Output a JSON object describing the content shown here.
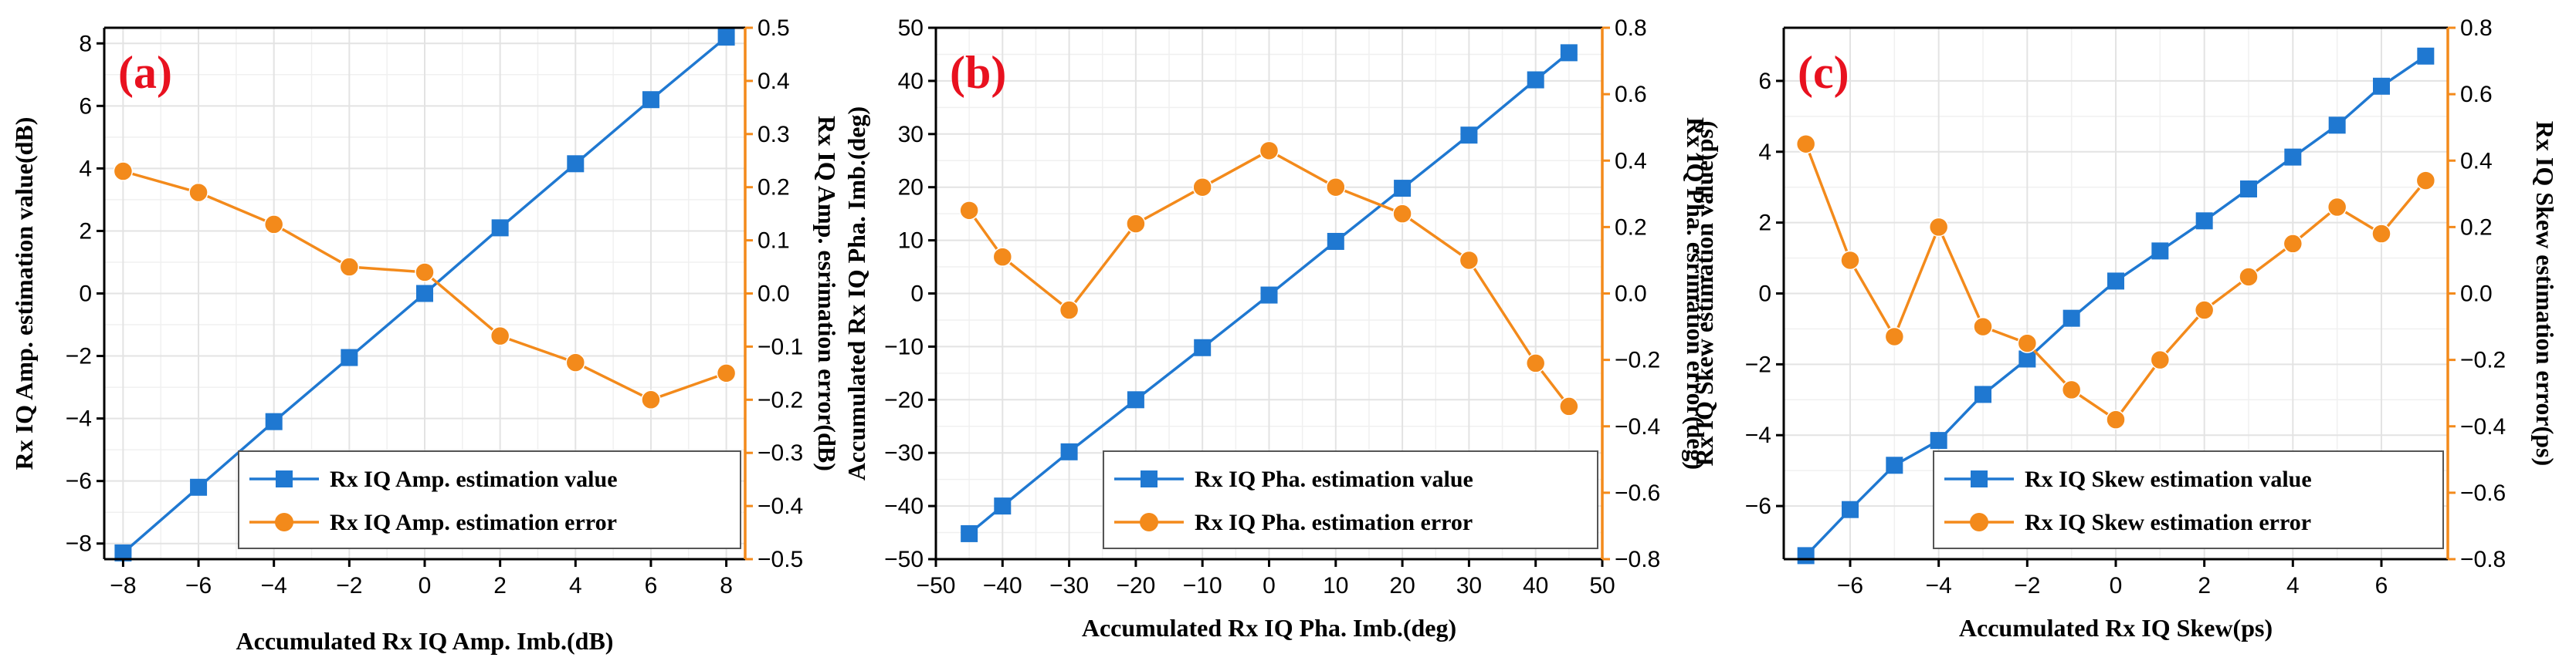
{
  "colors": {
    "value_series": "#1f78d1",
    "error_series": "#f38a1b",
    "panel_label": "#e8111f"
  },
  "chart_data": [
    {
      "type": "line",
      "panel": "(a)",
      "xlabel": "Accumulated Rx IQ Amp. Imb.(dB)",
      "ylabel": "Rx IQ Amp. estimation value(dB)",
      "y2label": "Rx IQ Amp. esrimation error(dB)",
      "xlim": [
        -8.5,
        8.5
      ],
      "xticks": [
        -8,
        -6,
        -4,
        -2,
        0,
        2,
        4,
        6,
        8
      ],
      "xtick_labels": [
        "−8",
        "−6",
        "−4",
        "−2",
        "0",
        "2",
        "4",
        "6",
        "8"
      ],
      "ylim": [
        -8.5,
        8.5
      ],
      "yticks": [
        -8,
        -6,
        -4,
        -2,
        0,
        2,
        4,
        6,
        8
      ],
      "ytick_labels": [
        "−8",
        "−6",
        "−4",
        "−2",
        "0",
        "2",
        "4",
        "6",
        "8"
      ],
      "y2lim": [
        -0.5,
        0.5
      ],
      "y2ticks": [
        -0.5,
        -0.4,
        -0.3,
        -0.2,
        -0.1,
        0.0,
        0.1,
        0.2,
        0.3,
        0.4,
        0.5
      ],
      "y2tick_labels": [
        "−0.5",
        "−0.4",
        "−0.3",
        "−0.2",
        "−0.1",
        "0.0",
        "0.1",
        "0.2",
        "0.3",
        "0.4",
        "0.5"
      ],
      "legend_position": "bottom-right",
      "series": [
        {
          "name": "Rx IQ Amp. estimation value",
          "axis": "left",
          "marker": "square",
          "x": [
            -8,
            -6,
            -4,
            -2,
            0,
            2,
            4,
            6,
            8
          ],
          "y": [
            -8.3,
            -6.2,
            -4.1,
            -2.05,
            0.0,
            2.1,
            4.15,
            6.2,
            8.2
          ]
        },
        {
          "name": "Rx IQ Amp. estimation error",
          "axis": "right",
          "marker": "circle",
          "x": [
            -8,
            -6,
            -4,
            -2,
            0,
            2,
            4,
            6,
            8
          ],
          "y": [
            0.23,
            0.19,
            0.13,
            0.05,
            0.04,
            -0.08,
            -0.13,
            -0.2,
            -0.15
          ]
        }
      ]
    },
    {
      "type": "line",
      "panel": "(b)",
      "xlabel": "Accumulated Rx IQ Pha. Imb.(deg)",
      "ylabel": "Accumulated Rx IQ Pha. Imb.(deg)",
      "y2label": "Rx IQ Pha. esrimation error(deg)",
      "xlim": [
        -50,
        50
      ],
      "xticks": [
        -50,
        -40,
        -30,
        -20,
        -10,
        0,
        10,
        20,
        30,
        40,
        50
      ],
      "xtick_labels": [
        "−50",
        "−40",
        "−30",
        "−20",
        "−10",
        "0",
        "10",
        "20",
        "30",
        "40",
        "50"
      ],
      "ylim": [
        -50,
        50
      ],
      "yticks": [
        -50,
        -40,
        -30,
        -20,
        -10,
        0,
        10,
        20,
        30,
        40,
        50
      ],
      "ytick_labels": [
        "−50",
        "−40",
        "−30",
        "−20",
        "−10",
        "0",
        "10",
        "20",
        "30",
        "40",
        "50"
      ],
      "y2lim": [
        -0.8,
        0.8
      ],
      "y2ticks": [
        -0.8,
        -0.6,
        -0.4,
        -0.2,
        0.0,
        0.2,
        0.4,
        0.6,
        0.8
      ],
      "y2tick_labels": [
        "−0.8",
        "−0.6",
        "−0.4",
        "−0.2",
        "0.0",
        "0.2",
        "0.4",
        "0.6",
        "0.8"
      ],
      "legend_position": "bottom-right",
      "series": [
        {
          "name": "Rx IQ Pha. estimation value",
          "axis": "left",
          "marker": "square",
          "x": [
            -45,
            -40,
            -30,
            -20,
            -10,
            0,
            10,
            20,
            30,
            40,
            45
          ],
          "y": [
            -45.2,
            -40.0,
            -29.8,
            -20.0,
            -10.2,
            -0.3,
            9.8,
            19.8,
            29.8,
            40.2,
            45.3
          ]
        },
        {
          "name": "Rx IQ Pha. estimation error",
          "axis": "right",
          "marker": "circle",
          "x": [
            -45,
            -40,
            -30,
            -20,
            -10,
            0,
            10,
            20,
            30,
            40,
            45
          ],
          "y": [
            0.25,
            0.11,
            -0.05,
            0.21,
            0.32,
            0.43,
            0.32,
            0.24,
            0.1,
            -0.21,
            -0.34
          ]
        }
      ]
    },
    {
      "type": "line",
      "panel": "(c)",
      "xlabel": "Accumulated Rx IQ Skew(ps)",
      "ylabel": "Rx IQ Skew estimation value(ps)",
      "y2label": "Rx IQ Skew estimation error(ps)",
      "xlim": [
        -7.5,
        7.5
      ],
      "xticks": [
        -6,
        -4,
        -2,
        0,
        2,
        4,
        6
      ],
      "xtick_labels": [
        "−6",
        "−4",
        "−2",
        "0",
        "2",
        "4",
        "6"
      ],
      "ylim": [
        -7.5,
        7.5
      ],
      "yticks": [
        -6,
        -4,
        -2,
        0,
        2,
        4,
        6
      ],
      "ytick_labels": [
        "−6",
        "−4",
        "−2",
        "0",
        "2",
        "4",
        "6"
      ],
      "y2lim": [
        -0.8,
        0.8
      ],
      "y2ticks": [
        -0.8,
        -0.6,
        -0.4,
        -0.2,
        0.0,
        0.2,
        0.4,
        0.6,
        0.8
      ],
      "y2tick_labels": [
        "−0.8",
        "−0.6",
        "−0.4",
        "−0.2",
        "0.0",
        "0.2",
        "0.4",
        "0.6",
        "0.8"
      ],
      "legend_position": "bottom-right",
      "series": [
        {
          "name": "Rx IQ Skew estimation value",
          "axis": "left",
          "marker": "square",
          "x": [
            -7,
            -6,
            -5,
            -4,
            -3,
            -2,
            -1,
            0,
            1,
            2,
            3,
            4,
            5,
            6,
            7
          ],
          "y": [
            -7.4,
            -6.1,
            -4.85,
            -4.15,
            -2.85,
            -1.85,
            -0.7,
            0.35,
            1.2,
            2.05,
            2.95,
            3.85,
            4.75,
            5.85,
            6.7
          ]
        },
        {
          "name": "Rx IQ Skew estimation error",
          "axis": "right",
          "marker": "circle",
          "x": [
            -7,
            -6,
            -5,
            -4,
            -3,
            -2,
            -1,
            0,
            1,
            2,
            3,
            4,
            5,
            6,
            7
          ],
          "y": [
            0.45,
            0.1,
            -0.13,
            0.2,
            -0.1,
            -0.15,
            -0.29,
            -0.38,
            -0.2,
            -0.05,
            0.05,
            0.15,
            0.26,
            0.18,
            0.34
          ]
        }
      ]
    }
  ]
}
